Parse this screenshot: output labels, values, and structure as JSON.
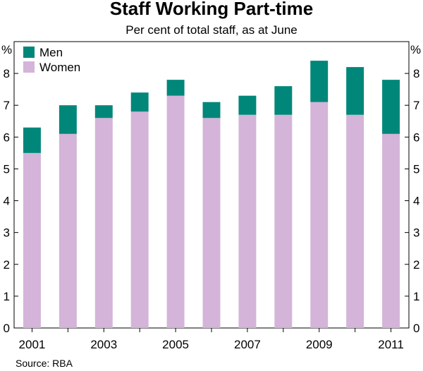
{
  "chart_data": {
    "type": "bar",
    "stacked": true,
    "title": "Staff Working Part-time",
    "subtitle": "Per cent of total staff, as at June",
    "ylabel_left": "%",
    "ylabel_right": "%",
    "ylim": [
      0,
      9
    ],
    "yticks": [
      0,
      1,
      2,
      3,
      4,
      5,
      6,
      7,
      8
    ],
    "categories": [
      "2001",
      "2002",
      "2003",
      "2004",
      "2005",
      "2006",
      "2007",
      "2008",
      "2009",
      "2010",
      "2011"
    ],
    "xtick_labels": [
      "2001",
      "",
      "2003",
      "",
      "2005",
      "",
      "2007",
      "",
      "2009",
      "",
      "2011"
    ],
    "series": [
      {
        "name": "Women",
        "color": "#d4b4d9",
        "values": [
          5.5,
          6.1,
          6.6,
          6.8,
          7.3,
          6.6,
          6.7,
          6.7,
          7.1,
          6.7,
          6.1
        ]
      },
      {
        "name": "Men",
        "color": "#00877a",
        "values": [
          0.8,
          0.9,
          0.4,
          0.6,
          0.5,
          0.5,
          0.6,
          0.9,
          1.3,
          1.5,
          1.7
        ]
      }
    ],
    "legend": {
      "position": "top-left",
      "entries": [
        {
          "label": "Men",
          "color": "#00877a"
        },
        {
          "label": "Women",
          "color": "#d4b4d9"
        }
      ]
    },
    "grid": false,
    "source": "Source: RBA"
  }
}
